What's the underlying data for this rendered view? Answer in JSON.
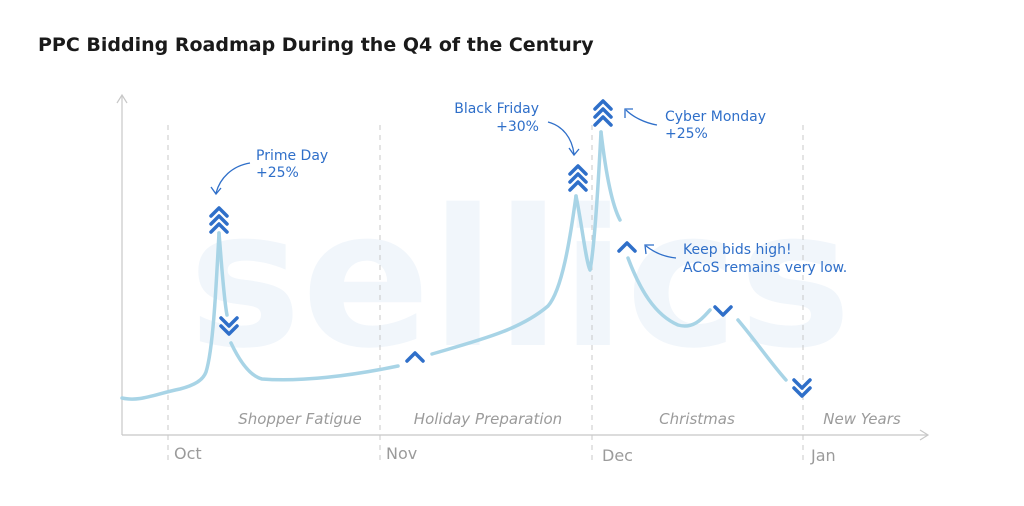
{
  "title": "PPC Bidding Roadmap During the Q4 of the Century",
  "watermark": "sellics",
  "colors": {
    "line": "#a8d4e6",
    "arrow": "#2f6fc9",
    "label": "#2f6fc9",
    "axis": "#c8c8c8",
    "divider": "#c8c8c8",
    "period_text": "#9b9b9b",
    "month_text": "#9b9b9b",
    "watermark": "#f1f6fb"
  },
  "chart_data": {
    "type": "line",
    "title": "PPC Bidding Roadmap During the Q4 of the Century",
    "x_ticks": [
      "Oct",
      "Nov",
      "Dec",
      "Jan"
    ],
    "periods": [
      "Shopper Fatigue",
      "Holiday Preparation",
      "Christmas",
      "New Years"
    ],
    "annotations": [
      {
        "text": "Prime Day",
        "sub": "+25%"
      },
      {
        "text": "Black Friday",
        "sub": "+30%"
      },
      {
        "text": "Cyber Monday",
        "sub": "+25%"
      },
      {
        "text": "Keep bids high!",
        "sub": "ACoS remains very low."
      }
    ],
    "bid_signals": [
      {
        "event": "Prime Day",
        "direction": "up",
        "strength": 3
      },
      {
        "event": "Post Prime Day",
        "direction": "down",
        "strength": 2
      },
      {
        "event": "Holiday Preparation",
        "direction": "up",
        "strength": 1
      },
      {
        "event": "Black Friday",
        "direction": "up",
        "strength": 3
      },
      {
        "event": "Cyber Monday",
        "direction": "up",
        "strength": 3
      },
      {
        "event": "Keep bids high",
        "direction": "up",
        "strength": 1
      },
      {
        "event": "Christmas",
        "direction": "down",
        "strength": 1
      },
      {
        "event": "New Years",
        "direction": "down",
        "strength": 2
      }
    ],
    "grid": false,
    "legend": "none"
  }
}
